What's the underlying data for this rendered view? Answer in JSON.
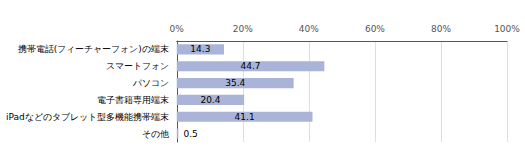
{
  "chart_data": {
    "type": "bar",
    "orientation": "horizontal",
    "categories": [
      "携帯電話(フィーチャーフォン)の端末",
      "スマートフォン",
      "パソコン",
      "電子書籍専用端末",
      "iPadなどのタブレット型多機能携帯端末",
      "その他"
    ],
    "values": [
      14.3,
      44.7,
      35.4,
      20.4,
      41.1,
      0.5
    ],
    "color": "#aab4d8",
    "xlim": [
      0,
      100
    ],
    "xticks": [
      {
        "value": 0,
        "label": "0%"
      },
      {
        "value": 20,
        "label": "20%"
      },
      {
        "value": 40,
        "label": "40%"
      },
      {
        "value": 60,
        "label": "60%"
      },
      {
        "value": 80,
        "label": "80%"
      },
      {
        "value": 100,
        "label": "100%"
      }
    ],
    "grid": true,
    "data_labels": true
  }
}
